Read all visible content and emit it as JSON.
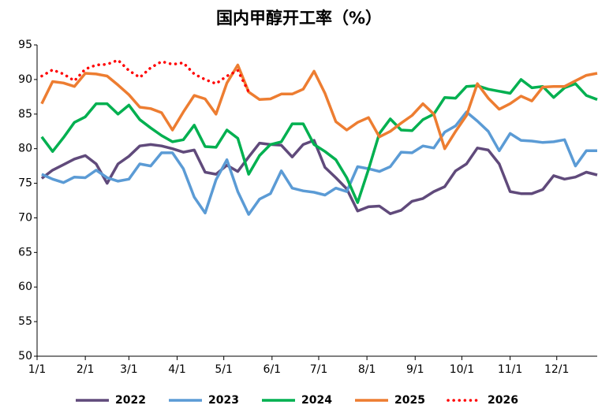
{
  "chart_data": {
    "type": "line",
    "title": "国内甲醇开工率（%）",
    "x": [
      3,
      10,
      17,
      24,
      31,
      38,
      45,
      52,
      59,
      66,
      73,
      80,
      87,
      94,
      101,
      108,
      115,
      122,
      129,
      136,
      143,
      150,
      157,
      164,
      171,
      178,
      185,
      192,
      199,
      206,
      213,
      220,
      227,
      234,
      241,
      248,
      255,
      262,
      269,
      276,
      283,
      290,
      297,
      304,
      311,
      318,
      325,
      332,
      339,
      346,
      353,
      360
    ],
    "xlim": [
      0,
      360
    ],
    "xticks": [
      {
        "value": 0,
        "label": "1/1"
      },
      {
        "value": 31,
        "label": "2/1"
      },
      {
        "value": 59,
        "label": "3/1"
      },
      {
        "value": 90,
        "label": "4/1"
      },
      {
        "value": 120,
        "label": "5/1"
      },
      {
        "value": 151,
        "label": "6/1"
      },
      {
        "value": 181,
        "label": "7/1"
      },
      {
        "value": 212,
        "label": "8/1"
      },
      {
        "value": 243,
        "label": "9/1"
      },
      {
        "value": 273,
        "label": "10/1"
      },
      {
        "value": 304,
        "label": "11/1"
      },
      {
        "value": 334,
        "label": "12/1"
      }
    ],
    "ylim": [
      50,
      95
    ],
    "yticks": [
      50,
      55,
      60,
      65,
      70,
      75,
      80,
      85,
      90,
      95
    ],
    "grid": false,
    "legend": "bottom",
    "series": [
      {
        "name": "2022",
        "color": "#604a7b",
        "values": [
          75.7,
          76.9,
          77.7,
          78.5,
          79,
          77.8,
          75,
          77.8,
          78.9,
          80.4,
          80.6,
          80.4,
          80,
          79.5,
          79.8,
          76.6,
          76.3,
          77.6,
          76.7,
          78.8,
          80.8,
          80.6,
          80.5,
          78.8,
          80.6,
          81.2,
          77.3,
          75.8,
          74.2,
          71,
          71.6,
          71.7,
          70.6,
          71.1,
          72.4,
          72.8,
          73.8,
          74.5,
          76.8,
          77.8,
          80.1,
          79.8,
          77.8,
          73.8,
          73.5,
          73.5,
          74.1,
          76.1,
          75.6,
          75.9,
          76.6,
          76.2
        ]
      },
      {
        "name": "2023",
        "color": "#5b9bd5",
        "values": [
          76.3,
          75.6,
          75.1,
          75.9,
          75.8,
          76.9,
          75.8,
          75.3,
          75.6,
          77.8,
          77.5,
          79.4,
          79.4,
          77.1,
          73,
          70.7,
          75.5,
          78.4,
          73.8,
          70.5,
          72.7,
          73.5,
          76.8,
          74.3,
          73.9,
          73.7,
          73.3,
          74.3,
          73.8,
          77.4,
          77.1,
          76.7,
          77.4,
          79.5,
          79.4,
          80.4,
          80.1,
          82.4,
          83.3,
          85.3,
          84,
          82.5,
          79.7,
          82.2,
          81.2,
          81.1,
          80.9,
          81,
          81.3,
          77.5,
          79.7,
          79.7
        ]
      },
      {
        "name": "2024",
        "color": "#00b050",
        "values": [
          81.7,
          79.6,
          81.6,
          83.8,
          84.6,
          86.5,
          86.5,
          85,
          86.3,
          84.2,
          83,
          81.9,
          81,
          81.3,
          83.4,
          80.3,
          80.2,
          82.7,
          81.5,
          76.3,
          79,
          80.6,
          81,
          83.6,
          83.6,
          80.6,
          79.6,
          78.4,
          75.8,
          72.2,
          77,
          82.2,
          84.3,
          82.7,
          82.6,
          84.2,
          85,
          87.4,
          87.3,
          89,
          89.1,
          88.6,
          88.3,
          88,
          90,
          88.8,
          89,
          87.4,
          88.8,
          89.4,
          87.7,
          87.1
        ]
      },
      {
        "name": "2025",
        "color": "#ed7d31",
        "values": [
          86.5,
          89.7,
          89.5,
          89,
          90.9,
          90.8,
          90.5,
          89.2,
          87.8,
          86,
          85.8,
          85.2,
          82.7,
          85.3,
          87.7,
          87.2,
          85,
          89.5,
          92.1,
          88.2,
          87.1,
          87.2,
          87.9,
          87.9,
          88.6,
          91.2,
          88,
          83.9,
          82.7,
          83.8,
          84.5,
          81.7,
          82.5,
          83.7,
          84.8,
          86.5,
          85,
          80,
          82.5,
          84.8,
          89.4,
          87.3,
          85.7,
          86.5,
          87.6,
          86.9,
          88.9,
          89,
          89,
          89.8,
          90.6,
          90.9
        ]
      },
      {
        "name": "2026",
        "color": "#ff0000",
        "line_style": "dotted",
        "values": [
          90.5,
          91.4,
          90.8,
          89.8,
          91.5,
          92.1,
          92.2,
          92.8,
          91.3,
          90.3,
          91.7,
          92.6,
          92.2,
          92.4,
          90.8,
          90,
          89.4,
          90.5,
          91.3,
          88.2,
          null,
          null,
          null,
          null,
          null,
          null,
          null,
          null,
          null,
          null,
          null,
          null,
          null,
          null,
          null,
          null,
          null,
          null,
          null,
          null,
          null,
          null,
          null,
          null,
          null,
          null,
          null,
          null,
          null,
          null,
          null,
          null
        ]
      }
    ]
  }
}
